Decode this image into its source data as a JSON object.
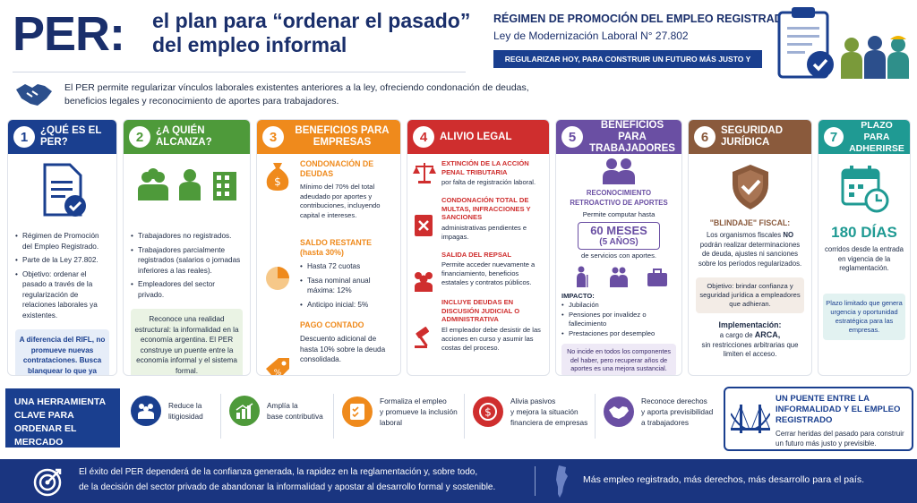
{
  "header": {
    "per": "PER:",
    "title_line1": "el plan para “ordenar el pasado”",
    "title_line2": "del empleo informal",
    "regimen": "RÉGIMEN DE PROMOCIÓN DEL EMPLEO REGISTRADO (PER)",
    "ley": "Ley de Modernización Laboral N° 27.802",
    "slogan": "REGULARIZAR HOY, PARA CONSTRUIR UN FUTURO MÁS JUSTO Y FORMAL"
  },
  "intro": "El PER permite regularizar vínculos laborales existentes anteriores a la ley, ofreciendo condonación de deudas, beneficios legales y reconocimiento de aportes para trabajadores.",
  "colors": {
    "navy": "#1a3f8f",
    "green": "#4e9a3a",
    "orange": "#ef8a1c",
    "red": "#cf2e2e",
    "purple": "#6a4fa3",
    "brown": "#8a5a3c",
    "teal": "#1f9a93"
  },
  "cards": {
    "c1": {
      "num": "1",
      "title": "¿QUÉ ES EL PER?",
      "b1": "Régimen de Promoción del Empleo Registrado.",
      "b2": "Parte de la Ley 27.802.",
      "b3": "Objetivo: ordenar el pasado a través de la regularización de relaciones laborales ya existentes.",
      "note": "A diferencia del RIFL, no promueve nuevas contrataciones. Busca blanquear lo que ya está."
    },
    "c2": {
      "num": "2",
      "title": "¿A QUIÉN ALCANZA?",
      "b1": "Trabajadores no registrados.",
      "b2": "Trabajadores parcialmente registrados (salarios o jornadas inferiores a las reales).",
      "b3": "Empleadores del sector privado.",
      "note": "Reconoce una realidad estructural: la informalidad en la economía argentina. El PER construye un puente entre la economía informal y el sistema formal."
    },
    "c3": {
      "num": "3",
      "title": "BENEFICIOS PARA EMPRESAS",
      "s1": "CONDONACIÓN DE DEUDAS",
      "t1": "Mínimo del 70% del total adeudado por aportes y contribuciones, incluyendo capital e intereses.",
      "s2": "SALDO RESTANTE",
      "s2b": "(hasta 30%)",
      "l1": "Hasta 72 cuotas",
      "l2": "Tasa nominal anual máxima: 12%",
      "l3": "Anticipo inicial: 5%",
      "s3": "PAGO CONTADO",
      "t3": "Descuento adicional de hasta 10% sobre la deuda consolidada."
    },
    "c4": {
      "num": "4",
      "title": "ALIVIO LEGAL",
      "s1": "EXTINCIÓN DE LA ACCIÓN PENAL TRIBUTARIA",
      "t1": "por falta de registración laboral.",
      "s2": "CONDONACIÓN TOTAL DE MULTAS, INFRACCIONES Y SANCIONES",
      "t2": "administrativas pendientes e impagas.",
      "s3": "SALIDA DEL REPSAL",
      "t3": "Permite acceder nuevamente a financiamiento, beneficios estatales y contratos públicos.",
      "s4": "INCLUYE DEUDAS EN DISCUSIÓN JUDICIAL O ADMINISTRATIVA",
      "t4": "El empleador debe desistir de las acciones en curso y asumir las costas del proceso."
    },
    "c5": {
      "num": "5",
      "title": "BENEFICIOS PARA TRABAJADORES",
      "s1": "RECONOCIMIENTO RETROACTIVO DE APORTES",
      "t1": "Permite computar hasta",
      "big": "60 MESES",
      "big2": "(5 AÑOS)",
      "t1b": "de servicios con aportes.",
      "imp": "IMPACTO:",
      "i1": "Jubilación",
      "i2": "Pensiones por invalidez o fallecimiento",
      "i3": "Prestaciones por desempleo",
      "note": "No incide en todos los componentes del haber, pero recuperar años de aportes es una mejora sustancial."
    },
    "c6": {
      "num": "6",
      "title": "SEGURIDAD JURÍDICA",
      "s1": "\"BLINDAJE\" FISCAL:",
      "t1a": "Los organismos fiscales ",
      "t1b": "NO",
      "t1c": " podrán realizar determinaciones de deuda, ajustes ni sanciones sobre los períodos regularizados.",
      "note": "Objetivo: brindar confianza y seguridad jurídica a empleadores que adhieran.",
      "impl": "Implementación:",
      "impl2a": "a cargo de ",
      "impl2b": "ARCA,",
      "impl3": "sin restricciones arbitrarias que limiten el acceso."
    },
    "c7": {
      "num": "7",
      "title": "PLAZO PARA ADHERIRSE",
      "big": "180 DÍAS",
      "t1": "corridos desde la entrada en vigencia de la reglamentación.",
      "note": "Plazo limitado que genera urgencia y oportunidad estratégica para las empresas."
    }
  },
  "strip": {
    "herr": "UNA HERRAMIENTA CLAVE PARA ORDENAR EL MERCADO LABORAL",
    "items": [
      {
        "l1": "Reduce la",
        "l2": "litigiosidad"
      },
      {
        "l1": "Amplía la",
        "l2": "base contributiva"
      },
      {
        "l1": "Formaliza el empleo",
        "l2": "y promueve la inclusión",
        "l3": "laboral"
      },
      {
        "l1": "Alivia pasivos",
        "l2": "y mejora la situación",
        "l3": "financiera de empresas"
      },
      {
        "l1": "Reconoce derechos",
        "l2": "y aporta previsibilidad",
        "l3": "a trabajadores"
      }
    ],
    "puente_t": "UN PUENTE ENTRE LA INFORMALIDAD Y EL EMPLEO REGISTRADO",
    "puente_b": "Cerrar heridas del pasado para construir un futuro más justo y previsible."
  },
  "footer": {
    "l1": "El éxito del PER dependerá de la confianza generada, la rapidez en la reglamentación y, sobre todo,",
    "l2": "de la decisión del sector privado de abandonar la informalidad y apostar al desarrollo formal y sostenible.",
    "right": "Más empleo registrado, más derechos, más desarrollo para el país."
  }
}
